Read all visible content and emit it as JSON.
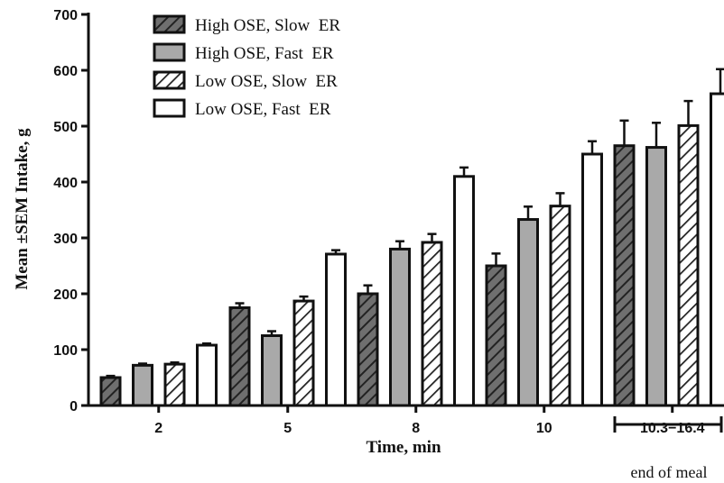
{
  "chart_data": {
    "type": "bar",
    "title": "",
    "xlabel": "Time, min",
    "ylabel": "Mean ±SEM Intake, g",
    "ylim": [
      0,
      700
    ],
    "yticks": [
      0,
      100,
      200,
      300,
      400,
      500,
      600,
      700
    ],
    "categories": [
      "2",
      "5",
      "8",
      "10",
      "10.3−16.4"
    ],
    "series": [
      {
        "name": "High OSE, Slow  ER",
        "fill": "hatch-gray",
        "values": [
          50,
          175,
          200,
          250,
          465
        ],
        "errors": [
          3,
          8,
          15,
          22,
          45
        ]
      },
      {
        "name": "High OSE, Fast  ER",
        "fill": "#a9a9a9",
        "values": [
          72,
          125,
          280,
          333,
          462
        ],
        "errors": [
          3,
          8,
          14,
          23,
          44
        ]
      },
      {
        "name": "Low OSE, Slow  ER",
        "fill": "hatch-white",
        "values": [
          74,
          187,
          292,
          357,
          501
        ],
        "errors": [
          3,
          8,
          15,
          23,
          44
        ]
      },
      {
        "name": "Low OSE, Fast  ER",
        "fill": "#ffffff",
        "values": [
          108,
          271,
          410,
          450,
          558
        ],
        "errors": [
          3,
          7,
          16,
          23,
          44
        ]
      }
    ],
    "grid": false,
    "legend_position": "top-left",
    "annotations": [
      {
        "text": "end of meal",
        "target_category": "10.3−16.4"
      }
    ]
  }
}
